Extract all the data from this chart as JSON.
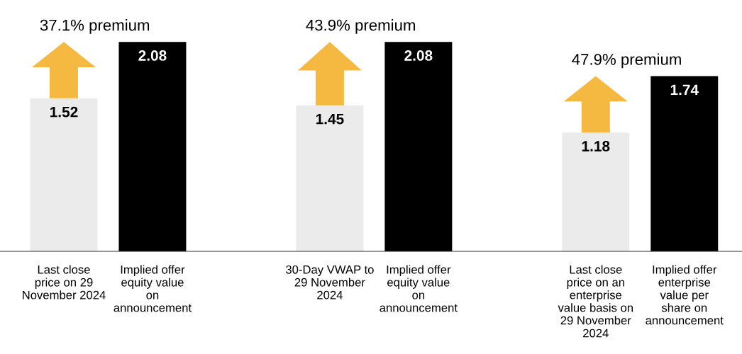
{
  "chart_data": {
    "type": "bar",
    "categories": [
      "Last close price on 29 November 2024",
      "Implied offer equity value on announcement",
      null,
      "30-Day VWAP to 29 November 2024",
      "Implied offer equity value on announcement",
      null,
      "Last close price on an enterprise value basis on 29 November 2024",
      "Implied offer enterprise value per share on announcement"
    ],
    "values": [
      1.52,
      2.08,
      null,
      1.45,
      2.08,
      null,
      1.18,
      1.74
    ],
    "colors": [
      "#ebebeb",
      "#000000",
      null,
      "#ebebeb",
      "#000000",
      null,
      "#ebebeb",
      "#000000"
    ],
    "data_labels": true,
    "annotations": [
      "37.1% premium",
      "43.9% premium",
      "47.9% premium"
    ],
    "grid": false,
    "legend": false
  }
}
